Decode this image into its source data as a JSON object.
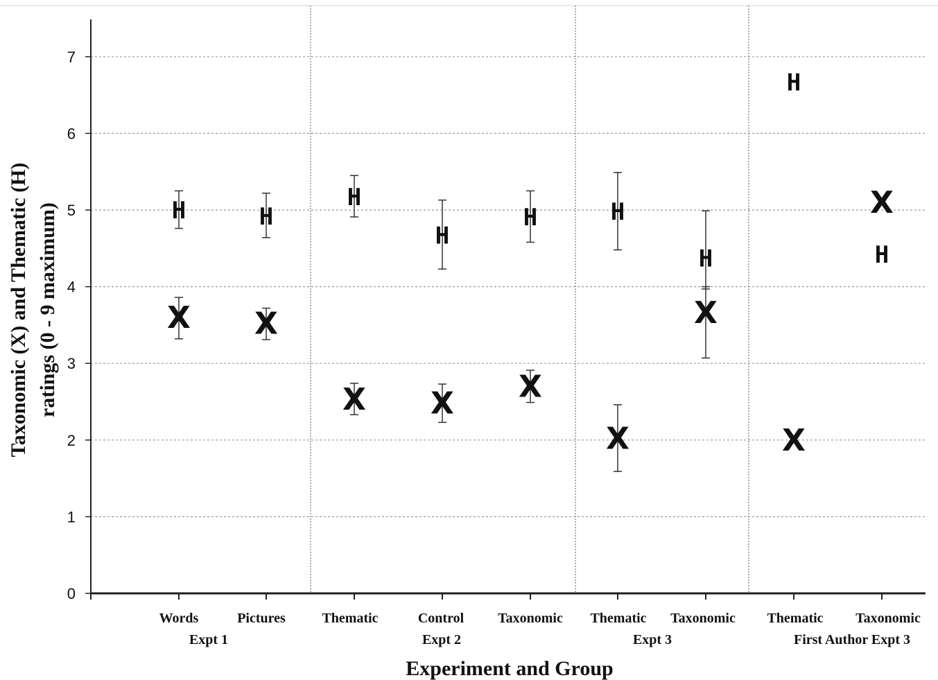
{
  "chart_data": {
    "type": "scatter",
    "xlabel": "Experiment and Group",
    "ylabel_line1": "Taxonomic  (X) and Thematic (H)",
    "ylabel_line2": "ratings (0 - 9 maximum)",
    "ylim": [
      0,
      7.5
    ],
    "yticks": [
      "0",
      "1",
      "2",
      "3",
      "4",
      "5",
      "6",
      "7"
    ],
    "grid": "horizontal dotted",
    "categories": [
      "Words",
      "Pictures",
      "Thematic",
      "Control",
      "Taxonomic",
      "Thematic",
      "Taxonomic",
      "Thematic",
      "Taxonomic"
    ],
    "groups": [
      {
        "label": "Expt 1",
        "categories": [
          0,
          1
        ]
      },
      {
        "label": "Expt 2",
        "categories": [
          2,
          3,
          4
        ]
      },
      {
        "label": "Expt 3",
        "categories": [
          5,
          6
        ]
      },
      {
        "label": "First Author Expt 3",
        "categories": [
          7,
          8
        ]
      }
    ],
    "series": [
      {
        "marker": "H",
        "values": [
          5.0,
          4.92,
          5.17,
          4.67,
          4.91,
          4.98,
          4.37,
          6.67,
          4.42
        ],
        "err_low": [
          4.76,
          4.64,
          4.91,
          4.23,
          4.58,
          4.48,
          3.97,
          null,
          null
        ],
        "err_high": [
          5.25,
          5.22,
          5.45,
          5.13,
          5.25,
          5.49,
          4.99,
          null,
          null
        ]
      },
      {
        "marker": "X",
        "values": [
          3.6,
          3.52,
          2.53,
          2.48,
          2.7,
          2.02,
          3.66,
          2.0,
          5.1
        ],
        "err_low": [
          3.32,
          3.31,
          2.33,
          2.23,
          2.49,
          1.59,
          3.07,
          null,
          null
        ],
        "err_high": [
          3.86,
          3.72,
          2.74,
          2.73,
          2.91,
          2.46,
          4.0,
          null,
          null
        ]
      }
    ]
  }
}
